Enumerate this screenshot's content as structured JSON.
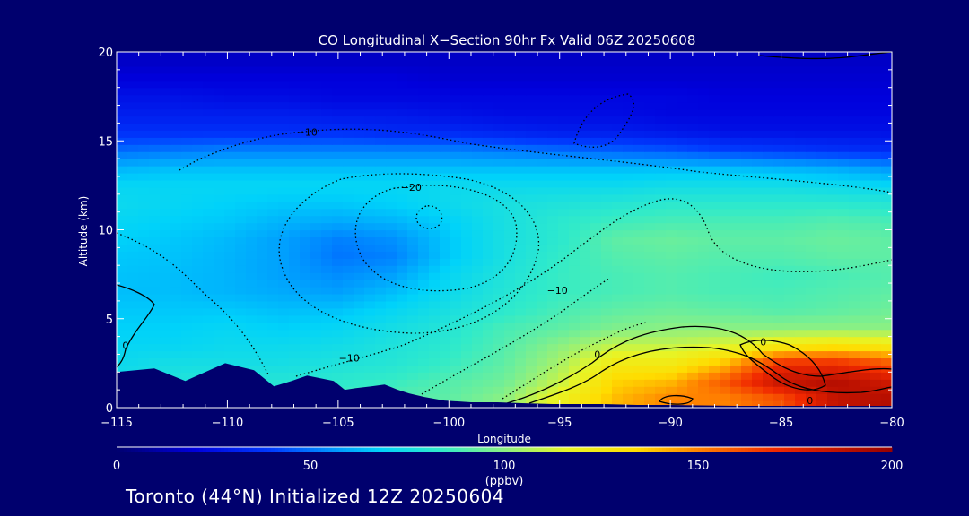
{
  "chart_data": {
    "type": "heatmap",
    "title": "CO Longitudinal X−Section 90hr  Fx Valid 06Z 20250608",
    "xlabel": "Longitude",
    "ylabel": "Altitude (km)",
    "xlim": [
      -115,
      -80
    ],
    "ylim": [
      0,
      20
    ],
    "x_ticks": [
      -115,
      -110,
      -105,
      -100,
      -95,
      -90,
      -85,
      -80
    ],
    "x_tick_labels": [
      "−115",
      "−110",
      "−105",
      "−100",
      "−95",
      "−90",
      "−85",
      "−80"
    ],
    "y_ticks": [
      0,
      5,
      10,
      15,
      20
    ],
    "y_tick_labels": [
      "0",
      "5",
      "10",
      "15",
      "20"
    ],
    "colorbar": {
      "min": 0,
      "max": 200,
      "ticks": [
        0,
        50,
        100,
        150,
        200
      ],
      "tick_labels": [
        "0",
        "50",
        "100",
        "150",
        "200"
      ],
      "unit": "(ppbv)"
    },
    "field": {
      "lon": [
        -115,
        -112.5,
        -110,
        -107.5,
        -105,
        -102.5,
        -100,
        -97.5,
        -95,
        -92.5,
        -90,
        -87.5,
        -85,
        -82.5,
        -80
      ],
      "alt": [
        0.5,
        1.5,
        2.5,
        3.5,
        4.5,
        5.5,
        6.5,
        7.5,
        8.5,
        9.5,
        10.5,
        11.5,
        12.5,
        13.5,
        14.5,
        15.5,
        16.5,
        17.5,
        18.5,
        19.5
      ],
      "values": [
        [
          75,
          80,
          85,
          85,
          88,
          90,
          92,
          100,
          120,
          140,
          150,
          150,
          160,
          185,
          190
        ],
        [
          75,
          78,
          80,
          80,
          82,
          85,
          90,
          95,
          110,
          135,
          140,
          160,
          185,
          190,
          180
        ],
        [
          72,
          75,
          75,
          75,
          78,
          80,
          85,
          92,
          105,
          125,
          125,
          140,
          170,
          170,
          160
        ],
        [
          70,
          70,
          72,
          72,
          74,
          78,
          82,
          90,
          100,
          110,
          110,
          115,
          125,
          130,
          125
        ],
        [
          68,
          68,
          70,
          68,
          70,
          75,
          80,
          88,
          92,
          98,
          100,
          100,
          100,
          100,
          100
        ],
        [
          66,
          66,
          66,
          64,
          65,
          70,
          76,
          82,
          88,
          92,
          94,
          92,
          90,
          92,
          95
        ],
        [
          64,
          64,
          62,
          60,
          58,
          64,
          72,
          80,
          85,
          88,
          90,
          88,
          88,
          90,
          92
        ],
        [
          65,
          64,
          62,
          58,
          54,
          58,
          70,
          78,
          85,
          88,
          90,
          88,
          86,
          88,
          90
        ],
        [
          66,
          65,
          62,
          58,
          50,
          52,
          66,
          76,
          84,
          90,
          92,
          90,
          90,
          92,
          92
        ],
        [
          68,
          66,
          63,
          58,
          52,
          55,
          66,
          76,
          82,
          92,
          94,
          92,
          92,
          94,
          92
        ],
        [
          70,
          68,
          66,
          62,
          60,
          62,
          68,
          76,
          82,
          86,
          88,
          88,
          88,
          90,
          88
        ],
        [
          72,
          70,
          68,
          66,
          66,
          68,
          72,
          76,
          78,
          80,
          82,
          82,
          82,
          82,
          80
        ],
        [
          70,
          70,
          70,
          70,
          70,
          70,
          72,
          72,
          72,
          72,
          74,
          74,
          74,
          72,
          70
        ],
        [
          62,
          64,
          64,
          64,
          64,
          64,
          64,
          64,
          64,
          64,
          64,
          64,
          62,
          60,
          56
        ],
        [
          48,
          50,
          52,
          52,
          52,
          52,
          52,
          50,
          48,
          46,
          44,
          40,
          38,
          36,
          34
        ],
        [
          36,
          36,
          36,
          36,
          36,
          34,
          34,
          32,
          30,
          30,
          28,
          26,
          26,
          26,
          26
        ],
        [
          30,
          30,
          30,
          30,
          28,
          28,
          26,
          24,
          24,
          24,
          22,
          22,
          22,
          22,
          22
        ],
        [
          26,
          26,
          24,
          24,
          22,
          22,
          22,
          22,
          22,
          22,
          22,
          20,
          20,
          20,
          20
        ],
        [
          20,
          20,
          20,
          20,
          20,
          20,
          18,
          18,
          18,
          18,
          18,
          18,
          18,
          18,
          18
        ],
        [
          16,
          16,
          16,
          16,
          16,
          16,
          16,
          16,
          16,
          16,
          16,
          16,
          16,
          16,
          16
        ]
      ]
    },
    "terrain": {
      "lon": [
        -115,
        -113.3,
        -111.9,
        -110.1,
        -108.8,
        -107.9,
        -107.1,
        -106.4,
        -105.2,
        -104.7,
        -104.2,
        -103.5,
        -102.9,
        -102.3,
        -101.8,
        -101.1,
        -100.2,
        -99.0,
        -97.8,
        -96.7,
        -95.3,
        -94.0,
        -93.0,
        -91.5,
        -90.0,
        -87.0,
        -84.0,
        -80.0
      ],
      "alt": [
        2.0,
        2.2,
        1.5,
        2.5,
        2.1,
        1.2,
        1.5,
        1.8,
        1.5,
        1.0,
        1.1,
        1.2,
        1.3,
        1.0,
        0.8,
        0.6,
        0.4,
        0.3,
        0.3,
        0.25,
        0.2,
        0.2,
        0.2,
        0.15,
        0.15,
        0.1,
        0.1,
        0.1
      ]
    },
    "contour_labels": [
      {
        "text": "−10",
        "lon": -106.4,
        "alt": 15.5
      },
      {
        "text": "−20",
        "lon": -101.7,
        "alt": 12.4
      },
      {
        "text": "−10",
        "lon": -95.1,
        "alt": 6.6
      },
      {
        "text": "−10",
        "lon": -104.5,
        "alt": 2.8
      },
      {
        "text": "0",
        "lon": -114.6,
        "alt": 3.5
      },
      {
        "text": "0",
        "lon": -93.3,
        "alt": 3.0
      },
      {
        "text": "0",
        "lon": -85.8,
        "alt": 3.7
      },
      {
        "text": "0",
        "lon": -83.7,
        "alt": 0.4
      }
    ]
  },
  "footer": {
    "text": "Toronto (44°N) Initialized 12Z 20250604"
  },
  "colors": {
    "background": "#00006e",
    "terrain": "#00006e",
    "contour": "#000000",
    "text": "#ffffff"
  }
}
